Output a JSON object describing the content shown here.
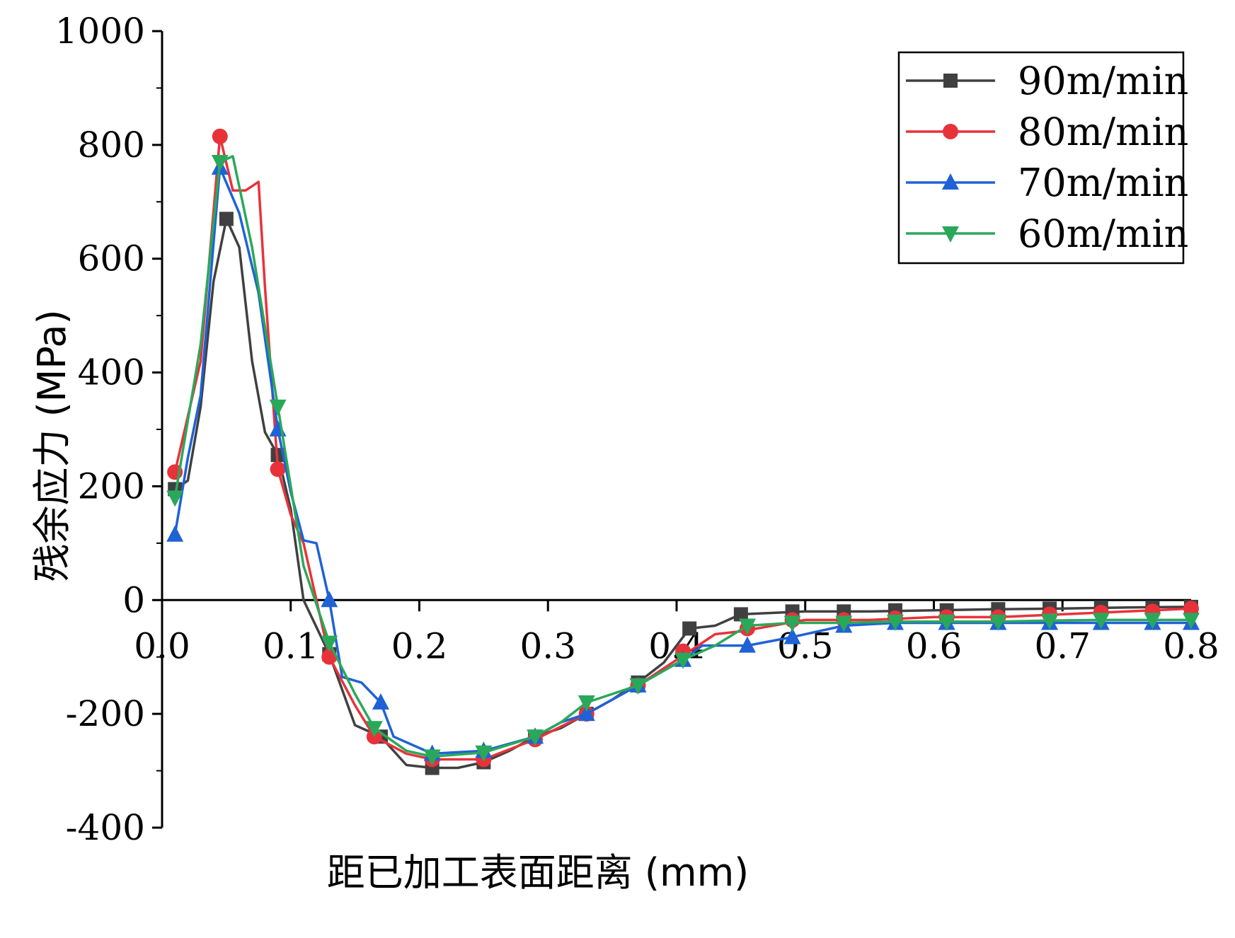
{
  "chart_data": {
    "type": "line",
    "xlabel": "距已加工表面距离 (mm)",
    "ylabel": "残余应力 (MPa)",
    "xlim": [
      0.0,
      0.8
    ],
    "ylim": [
      -400,
      1000
    ],
    "x_ticks": [
      "0.0",
      "0.1",
      "0.2",
      "0.3",
      "0.4",
      "0.5",
      "0.6",
      "0.7",
      "0.8"
    ],
    "y_ticks": [
      "1000",
      "800",
      "600",
      "400",
      "200",
      "0",
      "-200",
      "-400"
    ],
    "legend_position": "top-right",
    "grid": false,
    "series": [
      {
        "name": "90m/min",
        "color": "#404040",
        "marker": "square",
        "points": [
          [
            0.01,
            195
          ],
          [
            0.02,
            210
          ],
          [
            0.03,
            340
          ],
          [
            0.04,
            560
          ],
          [
            0.05,
            670
          ],
          [
            0.06,
            620
          ],
          [
            0.07,
            420
          ],
          [
            0.08,
            295
          ],
          [
            0.09,
            255
          ],
          [
            0.1,
            160
          ],
          [
            0.11,
            0
          ],
          [
            0.13,
            -95
          ],
          [
            0.15,
            -220
          ],
          [
            0.17,
            -240
          ],
          [
            0.19,
            -290
          ],
          [
            0.21,
            -295
          ],
          [
            0.23,
            -295
          ],
          [
            0.25,
            -285
          ],
          [
            0.27,
            -265
          ],
          [
            0.29,
            -240
          ],
          [
            0.31,
            -225
          ],
          [
            0.33,
            -200
          ],
          [
            0.35,
            -175
          ],
          [
            0.37,
            -145
          ],
          [
            0.39,
            -110
          ],
          [
            0.41,
            -50
          ],
          [
            0.43,
            -45
          ],
          [
            0.45,
            -25
          ],
          [
            0.5,
            -20
          ],
          [
            0.55,
            -20
          ],
          [
            0.6,
            -18
          ],
          [
            0.65,
            -16
          ],
          [
            0.7,
            -15
          ],
          [
            0.75,
            -13
          ],
          [
            0.8,
            -12
          ]
        ],
        "markers": [
          [
            0.01,
            195
          ],
          [
            0.05,
            670
          ],
          [
            0.09,
            255
          ],
          [
            0.13,
            -95
          ],
          [
            0.17,
            -240
          ],
          [
            0.21,
            -295
          ],
          [
            0.25,
            -285
          ],
          [
            0.29,
            -240
          ],
          [
            0.33,
            -200
          ],
          [
            0.37,
            -145
          ],
          [
            0.41,
            -50
          ],
          [
            0.45,
            -25
          ],
          [
            0.49,
            -20
          ],
          [
            0.53,
            -20
          ],
          [
            0.57,
            -18
          ],
          [
            0.61,
            -18
          ],
          [
            0.65,
            -16
          ],
          [
            0.69,
            -15
          ],
          [
            0.73,
            -13
          ],
          [
            0.77,
            -13
          ],
          [
            0.8,
            -12
          ]
        ]
      },
      {
        "name": "80m/min",
        "color": "#e8323a",
        "marker": "circle",
        "points": [
          [
            0.01,
            225
          ],
          [
            0.03,
            420
          ],
          [
            0.045,
            815
          ],
          [
            0.055,
            720
          ],
          [
            0.065,
            720
          ],
          [
            0.075,
            735
          ],
          [
            0.08,
            550
          ],
          [
            0.09,
            230
          ],
          [
            0.1,
            150
          ],
          [
            0.11,
            100
          ],
          [
            0.12,
            0
          ],
          [
            0.13,
            -100
          ],
          [
            0.15,
            -185
          ],
          [
            0.165,
            -240
          ],
          [
            0.19,
            -270
          ],
          [
            0.21,
            -280
          ],
          [
            0.25,
            -280
          ],
          [
            0.29,
            -245
          ],
          [
            0.33,
            -200
          ],
          [
            0.37,
            -150
          ],
          [
            0.41,
            -90
          ],
          [
            0.43,
            -60
          ],
          [
            0.45,
            -55
          ],
          [
            0.5,
            -35
          ],
          [
            0.55,
            -35
          ],
          [
            0.6,
            -30
          ],
          [
            0.65,
            -30
          ],
          [
            0.7,
            -25
          ],
          [
            0.75,
            -20
          ],
          [
            0.8,
            -15
          ]
        ],
        "markers": [
          [
            0.01,
            225
          ],
          [
            0.045,
            815
          ],
          [
            0.09,
            230
          ],
          [
            0.13,
            -100
          ],
          [
            0.165,
            -240
          ],
          [
            0.21,
            -280
          ],
          [
            0.25,
            -280
          ],
          [
            0.29,
            -245
          ],
          [
            0.33,
            -200
          ],
          [
            0.37,
            -150
          ],
          [
            0.405,
            -90
          ],
          [
            0.455,
            -50
          ],
          [
            0.49,
            -35
          ],
          [
            0.53,
            -35
          ],
          [
            0.57,
            -32
          ],
          [
            0.61,
            -30
          ],
          [
            0.65,
            -30
          ],
          [
            0.69,
            -25
          ],
          [
            0.73,
            -22
          ],
          [
            0.77,
            -20
          ],
          [
            0.8,
            -15
          ]
        ]
      },
      {
        "name": "70m/min",
        "color": "#1f62d6",
        "marker": "triangle-up",
        "points": [
          [
            0.01,
            115
          ],
          [
            0.02,
            250
          ],
          [
            0.03,
            360
          ],
          [
            0.045,
            760
          ],
          [
            0.06,
            680
          ],
          [
            0.075,
            540
          ],
          [
            0.09,
            300
          ],
          [
            0.1,
            190
          ],
          [
            0.11,
            105
          ],
          [
            0.12,
            100
          ],
          [
            0.13,
            0
          ],
          [
            0.14,
            -135
          ],
          [
            0.155,
            -145
          ],
          [
            0.17,
            -180
          ],
          [
            0.18,
            -240
          ],
          [
            0.21,
            -270
          ],
          [
            0.25,
            -265
          ],
          [
            0.29,
            -240
          ],
          [
            0.31,
            -215
          ],
          [
            0.33,
            -200
          ],
          [
            0.37,
            -150
          ],
          [
            0.405,
            -105
          ],
          [
            0.42,
            -80
          ],
          [
            0.455,
            -80
          ],
          [
            0.49,
            -65
          ],
          [
            0.53,
            -45
          ],
          [
            0.57,
            -40
          ],
          [
            0.61,
            -40
          ],
          [
            0.65,
            -40
          ],
          [
            0.69,
            -40
          ],
          [
            0.73,
            -40
          ],
          [
            0.77,
            -40
          ],
          [
            0.8,
            -40
          ]
        ],
        "markers": [
          [
            0.01,
            115
          ],
          [
            0.045,
            760
          ],
          [
            0.09,
            300
          ],
          [
            0.13,
            0
          ],
          [
            0.17,
            -180
          ],
          [
            0.21,
            -270
          ],
          [
            0.25,
            -265
          ],
          [
            0.29,
            -240
          ],
          [
            0.33,
            -200
          ],
          [
            0.37,
            -150
          ],
          [
            0.405,
            -105
          ],
          [
            0.455,
            -80
          ],
          [
            0.49,
            -65
          ],
          [
            0.53,
            -45
          ],
          [
            0.57,
            -40
          ],
          [
            0.61,
            -40
          ],
          [
            0.65,
            -40
          ],
          [
            0.69,
            -40
          ],
          [
            0.73,
            -40
          ],
          [
            0.77,
            -40
          ],
          [
            0.8,
            -40
          ]
        ]
      },
      {
        "name": "60m/min",
        "color": "#2aa85a",
        "marker": "triangle-down",
        "points": [
          [
            0.01,
            180
          ],
          [
            0.03,
            450
          ],
          [
            0.045,
            770
          ],
          [
            0.055,
            780
          ],
          [
            0.07,
            620
          ],
          [
            0.09,
            340
          ],
          [
            0.1,
            200
          ],
          [
            0.11,
            60
          ],
          [
            0.13,
            -75
          ],
          [
            0.15,
            -165
          ],
          [
            0.165,
            -225
          ],
          [
            0.19,
            -265
          ],
          [
            0.21,
            -275
          ],
          [
            0.25,
            -268
          ],
          [
            0.29,
            -240
          ],
          [
            0.31,
            -215
          ],
          [
            0.33,
            -180
          ],
          [
            0.37,
            -150
          ],
          [
            0.405,
            -105
          ],
          [
            0.43,
            -80
          ],
          [
            0.455,
            -45
          ],
          [
            0.49,
            -40
          ],
          [
            0.53,
            -40
          ],
          [
            0.57,
            -38
          ],
          [
            0.61,
            -38
          ],
          [
            0.65,
            -38
          ],
          [
            0.69,
            -36
          ],
          [
            0.73,
            -35
          ],
          [
            0.77,
            -35
          ],
          [
            0.8,
            -35
          ]
        ],
        "markers": [
          [
            0.01,
            180
          ],
          [
            0.045,
            770
          ],
          [
            0.09,
            340
          ],
          [
            0.13,
            -75
          ],
          [
            0.165,
            -225
          ],
          [
            0.21,
            -275
          ],
          [
            0.25,
            -268
          ],
          [
            0.29,
            -240
          ],
          [
            0.33,
            -180
          ],
          [
            0.37,
            -150
          ],
          [
            0.405,
            -105
          ],
          [
            0.455,
            -45
          ],
          [
            0.49,
            -40
          ],
          [
            0.53,
            -40
          ],
          [
            0.57,
            -38
          ],
          [
            0.61,
            -38
          ],
          [
            0.65,
            -38
          ],
          [
            0.69,
            -36
          ],
          [
            0.73,
            -35
          ],
          [
            0.77,
            -35
          ],
          [
            0.8,
            -35
          ]
        ]
      }
    ]
  }
}
